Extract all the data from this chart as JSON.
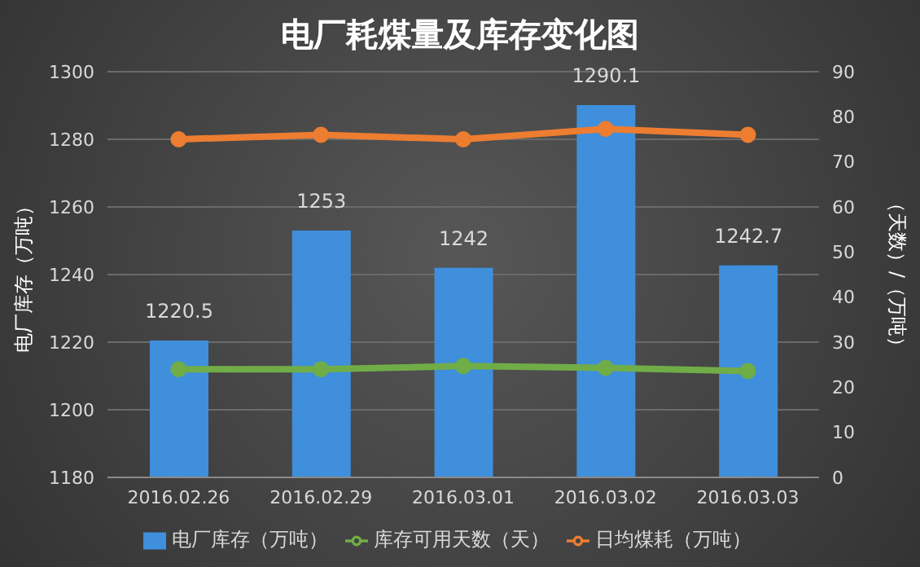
{
  "chart_data": {
    "type": "bar",
    "title": "电厂耗煤量及库存变化图",
    "ylabel": "电厂库存（万吨）",
    "y2label": "（天数）/（万吨）",
    "categories": [
      "2016.02.26",
      "2016.02.29",
      "2016.03.01",
      "2016.03.02",
      "2016.03.03"
    ],
    "series": [
      {
        "name": "电厂库存（万吨）",
        "color": "#3f8fdc",
        "values": [
          1220.5,
          1253,
          1242,
          1290.1,
          1242.7
        ],
        "value_labels": [
          "1220.5",
          "1253",
          "1242",
          "1290.1",
          "1242.7"
        ]
      },
      {
        "name": "库存可用天数（天）",
        "type": "line",
        "axis": "y2",
        "color": "#70ad47",
        "values": [
          24,
          24,
          24.7,
          24.3,
          23.6
        ]
      },
      {
        "name": "日均煤耗（万吨）",
        "type": "line",
        "axis": "y2",
        "color": "#ed7d31",
        "values": [
          75,
          76,
          75,
          77.3,
          76
        ]
      }
    ],
    "ylim": [
      1180,
      1300
    ],
    "yticks": [
      1180,
      1200,
      1220,
      1240,
      1260,
      1280,
      1300
    ],
    "y2lim": [
      0,
      90
    ],
    "y2ticks": [
      0,
      10,
      20,
      30,
      40,
      50,
      60,
      70,
      80,
      90
    ],
    "grid": "y",
    "legend": "bottom",
    "marker": "circle"
  }
}
